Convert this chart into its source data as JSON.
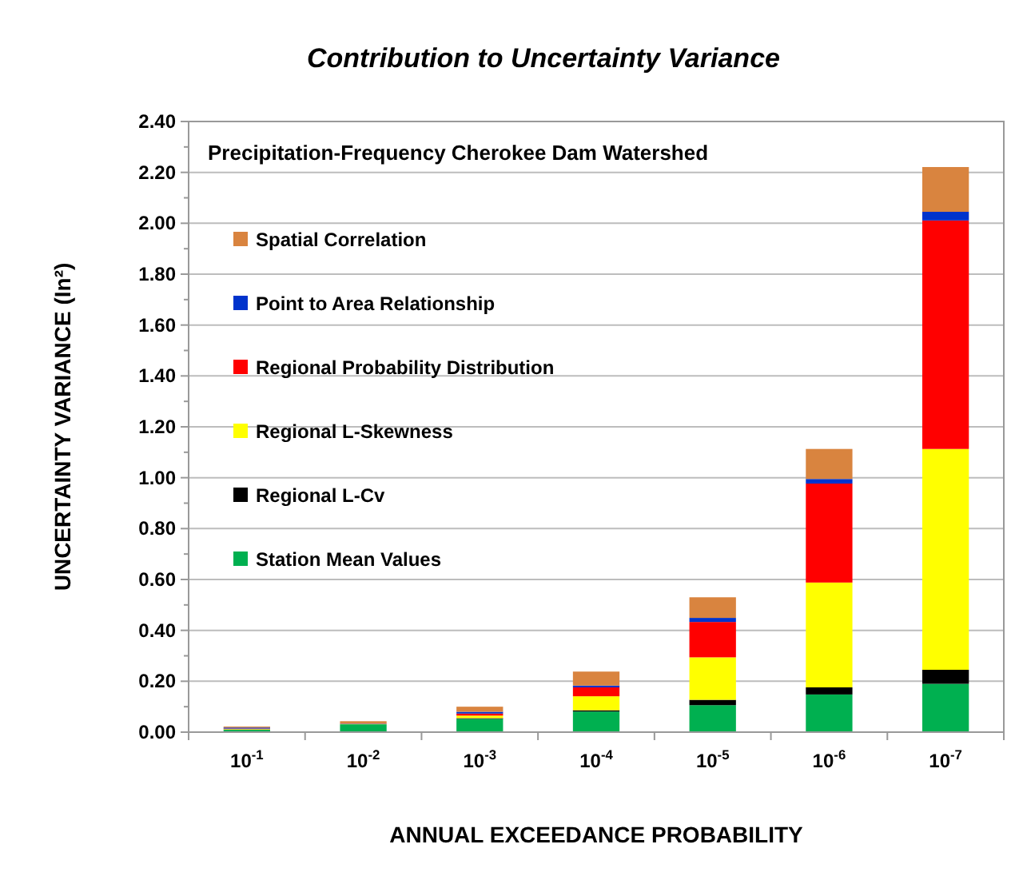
{
  "chart_data": {
    "type": "bar",
    "stacked": true,
    "title": "Contribution to Uncertainty Variance",
    "subtitle": "Precipitation-Frequency Cherokee Dam Watershed",
    "xlabel": "ANNUAL EXCEEDANCE PROBABILITY",
    "ylabel": "UNCERTAINTY VARIANCE (In²)",
    "categories": [
      "10$^{-1}$",
      "10$^{-2}$",
      "10$^{-3}$",
      "10$^{-4}$",
      "10$^{-5}$",
      "10$^{-6}$",
      "10$^{-7}$"
    ],
    "series": [
      {
        "name": "Station Mean Values",
        "color": "#00b050",
        "values": [
          0.01,
          0.031,
          0.052,
          0.081,
          0.106,
          0.148,
          0.19
        ]
      },
      {
        "name": "Regional L-Cv",
        "color": "#000000",
        "values": [
          null,
          null,
          0.003,
          0.005,
          0.021,
          0.028,
          0.055
        ]
      },
      {
        "name": "Regional L-Skewness",
        "color": "#ffff00",
        "values": [
          0.002,
          0.001,
          0.01,
          0.055,
          0.167,
          0.412,
          0.868
        ]
      },
      {
        "name": "Regional Probability Distribution",
        "color": "#ff0000",
        "values": [
          0.002,
          0.001,
          0.008,
          0.035,
          0.139,
          0.389,
          0.898
        ]
      },
      {
        "name": "Point to Area Relationship",
        "color": "#0033cc",
        "values": [
          0.004,
          0.001,
          0.007,
          0.007,
          0.016,
          0.018,
          0.034
        ]
      },
      {
        "name": "Spatial Correlation",
        "color": "#d9843f",
        "values": [
          0.004,
          0.009,
          0.02,
          0.055,
          0.081,
          0.118,
          0.176
        ]
      }
    ],
    "ylim": [
      0,
      2.4
    ],
    "yticks": [
      {
        "value": 0,
        "label": "0.00"
      },
      {
        "value": 0.1,
        "label": null
      },
      {
        "value": 0.2,
        "label": "0.20"
      },
      {
        "value": 0.3,
        "label": null
      },
      {
        "value": 0.4,
        "label": "0.40"
      },
      {
        "value": 0.5,
        "label": null
      },
      {
        "value": 0.6,
        "label": "0.60"
      },
      {
        "value": 0.7,
        "label": null
      },
      {
        "value": 0.8,
        "label": "0.80"
      },
      {
        "value": 0.9,
        "label": null
      },
      {
        "value": 1,
        "label": "1.00"
      },
      {
        "value": 1.1,
        "label": null
      },
      {
        "value": 1.2,
        "label": "1.20"
      },
      {
        "value": 1.3,
        "label": null
      },
      {
        "value": 1.4,
        "label": "1.40"
      },
      {
        "value": 1.5,
        "label": null
      },
      {
        "value": 1.6,
        "label": "1.60"
      },
      {
        "value": 1.7,
        "label": null
      },
      {
        "value": 1.8,
        "label": "1.80"
      },
      {
        "value": 1.9,
        "label": null
      },
      {
        "value": 2,
        "label": "2.00"
      },
      {
        "value": 2.1,
        "label": null
      },
      {
        "value": 2.2,
        "label": "2.20"
      },
      {
        "value": 2.3,
        "label": null
      },
      {
        "value": 2.4,
        "label": "2.40"
      }
    ],
    "grid": "y",
    "legend": "top left"
  }
}
